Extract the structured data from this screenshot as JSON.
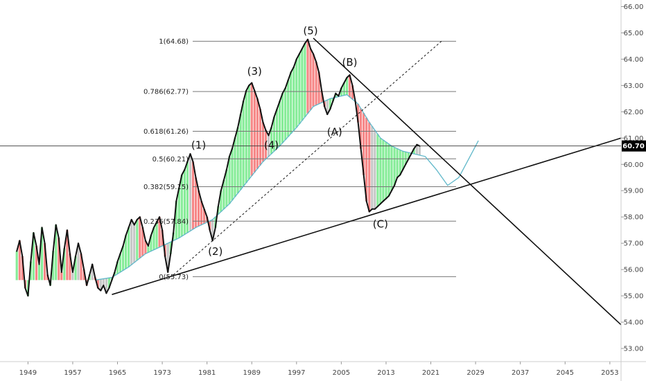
{
  "chart_data": {
    "type": "line",
    "title": "",
    "xlabel": "",
    "ylabel": "",
    "xlim": [
      1944,
      2055
    ],
    "ylim": [
      52.5,
      66.25
    ],
    "x_ticks": [
      "1949",
      "1957",
      "1965",
      "1973",
      "1981",
      "1989",
      "1997",
      "2005",
      "2013",
      "2021",
      "2029",
      "2037",
      "2045",
      "2053"
    ],
    "y_ticks": [
      "53.00",
      "54.00",
      "55.00",
      "56.00",
      "57.00",
      "58.00",
      "59.00",
      "60.00",
      "61.00",
      "62.00",
      "63.00",
      "64.00",
      "65.00",
      "66.00"
    ],
    "current_price": {
      "label": "60.70",
      "value": 60.7
    },
    "fib_levels": [
      {
        "label": "1(64.68)",
        "value": 64.68
      },
      {
        "label": "0.786(62.77)",
        "value": 62.77
      },
      {
        "label": "0.618(61.26)",
        "value": 61.26
      },
      {
        "label": "0.5(60.21)",
        "value": 60.21
      },
      {
        "label": "0.382(59.15)",
        "value": 59.15
      },
      {
        "label": "0.236(57.84)",
        "value": 57.84
      },
      {
        "label": "0(55.73)",
        "value": 55.73
      }
    ],
    "wave_labels": [
      {
        "label": "(1)",
        "x": 1979.5,
        "y": 60.6
      },
      {
        "label": "(2)",
        "x": 1982.5,
        "y": 56.55
      },
      {
        "label": "(3)",
        "x": 1989.5,
        "y": 63.4
      },
      {
        "label": "(4)",
        "x": 1992.5,
        "y": 60.6
      },
      {
        "label": "(5)",
        "x": 1999.5,
        "y": 64.95
      },
      {
        "label": "(A)",
        "x": 2003.8,
        "y": 61.1
      },
      {
        "label": "(B)",
        "x": 2006.5,
        "y": 63.75
      },
      {
        "label": "(C)",
        "x": 2012.0,
        "y": 57.6
      }
    ],
    "series": [
      {
        "x": [
          1947.0,
          1947.5,
          1948.0,
          1948.5,
          1949.0,
          1949.5,
          1950.0,
          1950.5,
          1951.0,
          1951.5,
          1952.0,
          1952.5,
          1953.0,
          1953.5,
          1954.0,
          1954.5,
          1955.0,
          1955.5,
          1956.0,
          1956.5,
          1957.0,
          1957.5,
          1958.0,
          1958.5,
          1959.0,
          1959.5,
          1960.0,
          1960.5,
          1961.0,
          1961.5,
          1962.0,
          1962.5,
          1963.0,
          1963.5,
          1964.0,
          1964.5,
          1965.0,
          1965.5,
          1966.0,
          1966.5,
          1967.0,
          1967.5,
          1968.0,
          1968.5,
          1969.0,
          1969.5,
          1970.0,
          1970.5,
          1971.0,
          1971.5,
          1972.0,
          1972.5,
          1973.0,
          1973.5,
          1974.0,
          1974.5,
          1975.0,
          1975.5,
          1976.0,
          1976.5,
          1977.0,
          1977.5,
          1978.0,
          1978.5,
          1979.0,
          1979.5,
          1980.0,
          1980.5,
          1981.0,
          1981.5,
          1982.0,
          1982.5,
          1983.0,
          1983.5,
          1984.0,
          1984.5,
          1985.0,
          1985.5,
          1986.0,
          1986.5,
          1987.0,
          1987.5,
          1988.0,
          1988.5,
          1989.0,
          1989.5,
          1990.0,
          1990.5,
          1991.0,
          1991.5,
          1992.0,
          1992.5,
          1993.0,
          1993.5,
          1994.0,
          1994.5,
          1995.0,
          1995.5,
          1996.0,
          1996.5,
          1997.0,
          1997.5,
          1998.0,
          1998.5,
          1999.0,
          1999.5,
          2000.0,
          2000.5,
          2001.0,
          2001.5,
          2002.0,
          2002.5,
          2003.0,
          2003.5,
          2004.0,
          2004.5,
          2005.0,
          2005.5,
          2006.0,
          2006.5,
          2007.0,
          2007.5,
          2008.0,
          2008.5,
          2009.0,
          2009.5,
          2010.0,
          2010.5,
          2011.0,
          2011.5,
          2012.0,
          2012.5,
          2013.0,
          2013.5,
          2014.0,
          2014.5,
          2015.0,
          2015.5,
          2016.0,
          2016.5,
          2017.0,
          2017.5,
          2018.0,
          2018.5,
          2019.0
        ],
        "values": [
          56.7,
          57.1,
          56.5,
          55.3,
          55.0,
          56.3,
          57.4,
          56.9,
          56.2,
          57.6,
          57.0,
          55.8,
          55.4,
          56.7,
          57.7,
          57.2,
          55.9,
          56.8,
          57.5,
          56.6,
          55.9,
          56.5,
          57.0,
          56.6,
          56.0,
          55.4,
          55.8,
          56.2,
          55.7,
          55.3,
          55.2,
          55.4,
          55.1,
          55.3,
          55.6,
          55.9,
          56.3,
          56.6,
          56.9,
          57.3,
          57.6,
          57.9,
          57.7,
          57.9,
          58.0,
          57.6,
          57.1,
          56.9,
          57.3,
          57.6,
          57.8,
          58.0,
          57.5,
          56.5,
          55.9,
          56.6,
          57.4,
          58.6,
          59.1,
          59.6,
          59.8,
          60.1,
          60.4,
          60.1,
          59.5,
          59.0,
          58.6,
          58.3,
          58.0,
          57.5,
          57.1,
          57.6,
          58.4,
          59.0,
          59.4,
          59.8,
          60.3,
          60.6,
          61.0,
          61.4,
          61.9,
          62.4,
          62.8,
          63.0,
          63.1,
          62.8,
          62.5,
          62.1,
          61.6,
          61.3,
          61.1,
          61.4,
          61.8,
          62.1,
          62.4,
          62.7,
          62.9,
          63.2,
          63.5,
          63.7,
          64.0,
          64.2,
          64.4,
          64.6,
          64.75,
          64.4,
          64.2,
          63.9,
          63.5,
          62.8,
          62.2,
          61.9,
          62.1,
          62.4,
          62.7,
          62.6,
          62.9,
          63.1,
          63.3,
          63.4,
          63.0,
          62.4,
          61.6,
          60.6,
          59.6,
          58.6,
          58.2,
          58.3,
          58.3,
          58.4,
          58.5,
          58.6,
          58.7,
          58.8,
          59.0,
          59.2,
          59.5,
          59.6,
          59.8,
          60.0,
          60.2,
          60.4,
          60.6,
          60.75,
          60.7
        ]
      }
    ],
    "ema_line": {
      "x": [
        1961,
        1964,
        1967,
        1970,
        1973,
        1976,
        1979,
        1982,
        1985,
        1988,
        1991,
        1994,
        1997,
        2000,
        2003,
        2006,
        2008,
        2010,
        2012,
        2014,
        2016,
        2018,
        2020,
        2022,
        2024,
        2026,
        2028,
        2029.5
      ],
      "values": [
        55.6,
        55.7,
        56.1,
        56.6,
        56.9,
        57.2,
        57.6,
        57.9,
        58.5,
        59.3,
        60.1,
        60.7,
        61.4,
        62.2,
        62.5,
        62.65,
        62.3,
        61.6,
        61.0,
        60.7,
        60.5,
        60.4,
        60.3,
        59.8,
        59.2,
        59.5,
        60.3,
        60.9
      ]
    },
    "trend_lines": [
      {
        "x": [
          1964,
          2055
        ],
        "values": [
          55.05,
          61.0
        ]
      },
      {
        "x": [
          2000,
          2055
        ],
        "values": [
          64.8,
          53.9
        ]
      },
      {
        "x": [
          1975,
          2023
        ],
        "values": [
          55.8,
          64.7
        ],
        "dashed": true
      }
    ],
    "colors": {
      "price": "#111111",
      "bull_fill": "#22dd44",
      "bear_fill": "#ee2222",
      "neutral_fill": "#999999",
      "ema": "#5fb7c9",
      "fib_line": "#777777",
      "trend": "#111111",
      "grid_axis": "#cccccc",
      "price_tag_bg": "#000000"
    }
  }
}
